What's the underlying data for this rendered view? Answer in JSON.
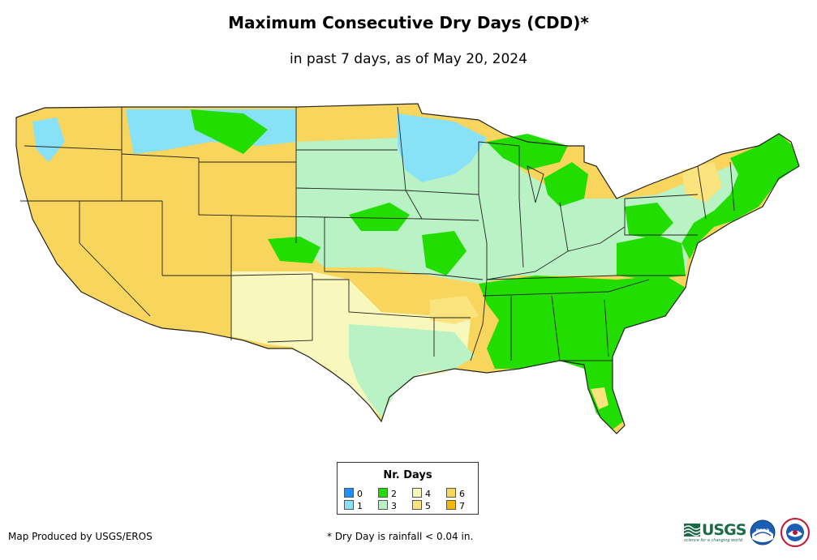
{
  "header": {
    "title": "Maximum Consecutive Dry Days (CDD)*",
    "subtitle": "in past 7 days, as of May 20, 2024"
  },
  "legend": {
    "title": "Nr. Days",
    "items": [
      {
        "label": "0",
        "color": "#1e90ff"
      },
      {
        "label": "1",
        "color": "#88e2f7"
      },
      {
        "label": "2",
        "color": "#22dd00"
      },
      {
        "label": "3",
        "color": "#b9f2c4"
      },
      {
        "label": "4",
        "color": "#f8f8bc"
      },
      {
        "label": "5",
        "color": "#fbe47e"
      },
      {
        "label": "6",
        "color": "#f8d55c"
      },
      {
        "label": "7",
        "color": "#f5b800"
      }
    ]
  },
  "footer": {
    "credit": "Map Produced by USGS/EROS",
    "note": "* Dry Day is rainfall < 0.04 in."
  },
  "logos": {
    "usgs_text": "USGS",
    "usgs_tagline": "science for a changing world",
    "noaa_text": "noaa"
  },
  "colors": {
    "state_border": "#222222"
  }
}
